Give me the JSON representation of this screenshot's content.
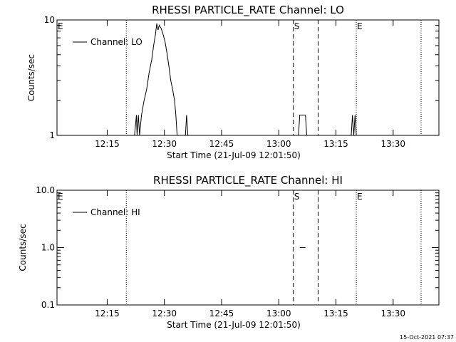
{
  "colors": {
    "background": "#ffffff",
    "foreground": "#000000"
  },
  "footer": {
    "timestamp": "15-Oct-2021 07:37"
  },
  "chart_data": [
    {
      "type": "line",
      "title": "RHESSI PARTICLE_RATE Channel: LO",
      "xlabel": "Start Time (21-Jul-09 12:01:50)",
      "ylabel": "Counts/sec",
      "yscale": "log",
      "ylim": [
        1,
        10
      ],
      "xlim": [
        "12:01:50",
        "13:42:00"
      ],
      "x_ticks": [
        "12:15",
        "12:30",
        "12:45",
        "13:00",
        "13:15",
        "13:30"
      ],
      "y_ticks": [
        {
          "value": 1,
          "label": "1"
        },
        {
          "value": 10,
          "label": "10"
        }
      ],
      "legend": {
        "label": "Channel: LO",
        "position": "top-left"
      },
      "series": [
        {
          "name": "Channel: LO",
          "points": [
            [
              "12:22:10",
              1
            ],
            [
              "12:22:40",
              1.5
            ],
            [
              "12:22:50",
              1
            ],
            [
              "12:23:10",
              1.5
            ],
            [
              "12:23:30",
              1
            ],
            [
              "12:24:00",
              1.5
            ],
            [
              "12:24:40",
              2
            ],
            [
              "12:25:20",
              2.5
            ],
            [
              "12:26:00",
              3.5
            ],
            [
              "12:26:40",
              4.5
            ],
            [
              "12:27:10",
              6
            ],
            [
              "12:27:40",
              7.5
            ],
            [
              "12:28:00",
              9.3
            ],
            [
              "12:28:20",
              8.2
            ],
            [
              "12:28:40",
              9
            ],
            [
              "12:29:10",
              8.4
            ],
            [
              "12:29:40",
              7.5
            ],
            [
              "12:30:10",
              6.5
            ],
            [
              "12:30:40",
              5.2
            ],
            [
              "12:31:10",
              4
            ],
            [
              "12:31:40",
              3
            ],
            [
              "12:32:10",
              2.5
            ],
            [
              "12:32:40",
              2
            ],
            [
              "12:33:00",
              1.5
            ],
            [
              "12:33:20",
              1
            ],
            [
              "12:35:30",
              1
            ],
            [
              "12:35:50",
              1.5
            ],
            [
              "12:36:10",
              1
            ],
            [
              "13:05:10",
              1
            ],
            [
              "13:05:30",
              1.5
            ],
            [
              "13:07:00",
              1.5
            ],
            [
              "13:07:20",
              1
            ],
            [
              "13:19:00",
              1
            ],
            [
              "13:19:20",
              1.5
            ],
            [
              "13:19:40",
              1
            ],
            [
              "13:20:00",
              1.5
            ],
            [
              "13:20:20",
              1
            ]
          ]
        }
      ],
      "markers": [
        {
          "label": "E",
          "time": "12:01:50",
          "style": "dotted"
        },
        {
          "label": "",
          "time": "12:20:00",
          "style": "dotted"
        },
        {
          "label": "S",
          "time": "13:03:50",
          "style": "dashed"
        },
        {
          "label": "",
          "time": "13:10:20",
          "style": "dashed"
        },
        {
          "label": "E",
          "time": "13:20:20",
          "style": "dotted"
        },
        {
          "label": "",
          "time": "13:37:20",
          "style": "dotted"
        }
      ]
    },
    {
      "type": "line",
      "title": "RHESSI PARTICLE_RATE Channel: HI",
      "xlabel": "Start Time (21-Jul-09 12:01:50)",
      "ylabel": "Counts/sec",
      "yscale": "log",
      "ylim": [
        0.1,
        10
      ],
      "xlim": [
        "12:01:50",
        "13:42:00"
      ],
      "x_ticks": [
        "12:15",
        "12:30",
        "12:45",
        "13:00",
        "13:15",
        "13:30"
      ],
      "y_ticks": [
        {
          "value": 0.1,
          "label": "0.1"
        },
        {
          "value": 1,
          "label": "1.0"
        },
        {
          "value": 10,
          "label": "10.0"
        }
      ],
      "legend": {
        "label": "Channel: HI",
        "position": "top-left"
      },
      "series": [
        {
          "name": "Channel: HI",
          "segments": [
            [
              [
                "13:05:30",
                1
              ],
              [
                "13:07:00",
                1
              ]
            ]
          ]
        }
      ],
      "markers": [
        {
          "label": "E",
          "time": "12:01:50",
          "style": "dotted"
        },
        {
          "label": "",
          "time": "12:20:00",
          "style": "dotted"
        },
        {
          "label": "S",
          "time": "13:03:50",
          "style": "dashed"
        },
        {
          "label": "",
          "time": "13:10:20",
          "style": "dashed"
        },
        {
          "label": "E",
          "time": "13:20:20",
          "style": "dotted"
        },
        {
          "label": "",
          "time": "13:37:20",
          "style": "dotted"
        }
      ]
    }
  ]
}
